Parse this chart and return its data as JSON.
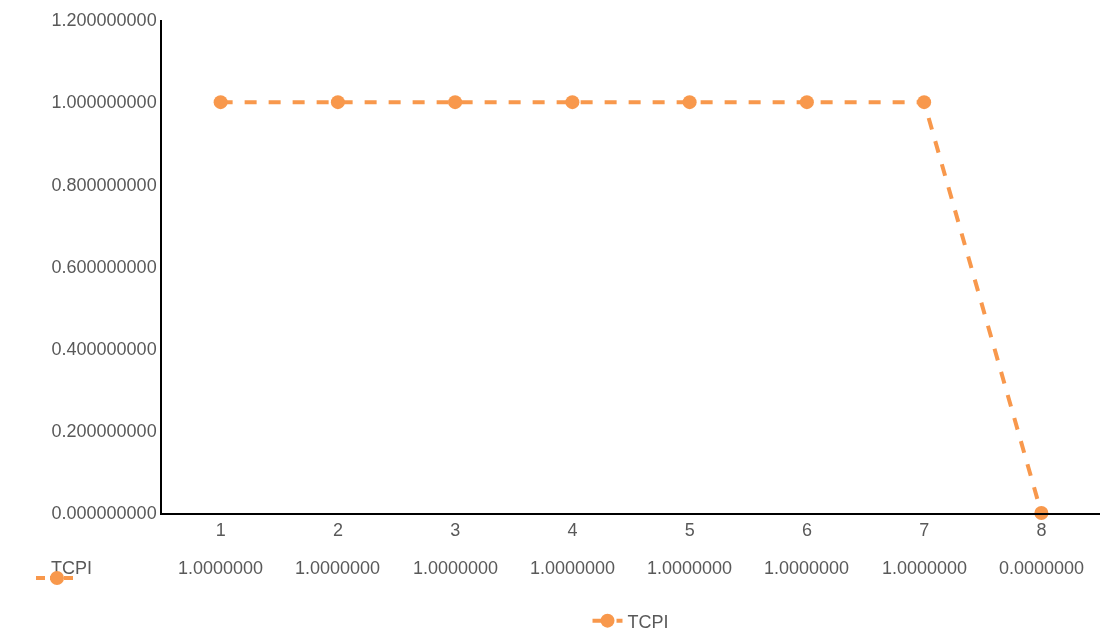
{
  "chart_data": {
    "type": "line",
    "categories": [
      "1",
      "2",
      "3",
      "4",
      "5",
      "6",
      "7",
      "8"
    ],
    "series": [
      {
        "name": "TCPI",
        "color": "#f8984c",
        "values": [
          1,
          1,
          1,
          1,
          1,
          1,
          1,
          0
        ],
        "value_labels": [
          "1.0000000",
          "1.0000000",
          "1.0000000",
          "1.0000000",
          "1.0000000",
          "1.0000000",
          "1.0000000",
          "0.0000000"
        ]
      }
    ],
    "ylim": [
      0,
      1.2
    ],
    "yticks": [
      {
        "value": 0,
        "label": "0.000000000"
      },
      {
        "value": 0.2,
        "label": "0.200000000"
      },
      {
        "value": 0.4,
        "label": "0.400000000"
      },
      {
        "value": 0.6,
        "label": "0.600000000"
      },
      {
        "value": 0.8,
        "label": "0.800000000"
      },
      {
        "value": 1,
        "label": "1.000000000"
      },
      {
        "value": 1.2,
        "label": "1.200000000"
      }
    ],
    "grid": false,
    "legend": "bottom",
    "marker": "circle",
    "line_style": "dashed"
  }
}
